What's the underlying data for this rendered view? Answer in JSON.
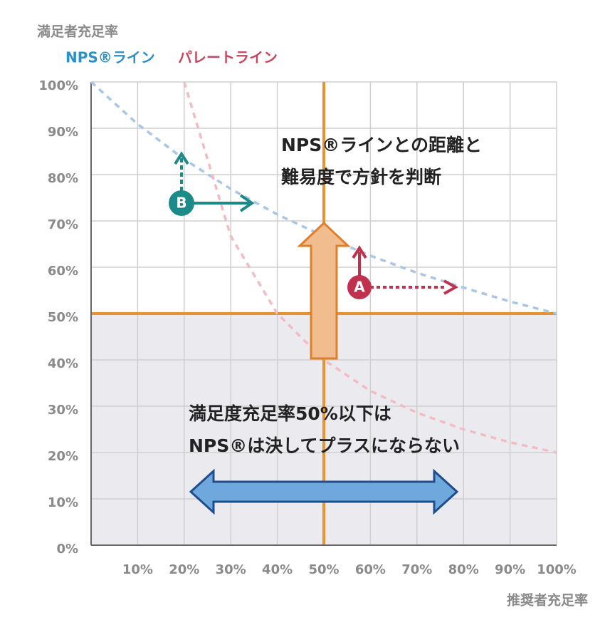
{
  "chart_data": {
    "type": "line",
    "y_label": "満足者充足率",
    "x_label": "推奨者充足率",
    "x": [
      0,
      10,
      20,
      30,
      40,
      50,
      60,
      70,
      80,
      90,
      100
    ],
    "series": [
      {
        "name": "NPS®ライン",
        "color": "#a9c6e4",
        "legend_color": "#2a90c9",
        "values": [
          100,
          90.9,
          83.3,
          76.9,
          71.4,
          66.7,
          62.5,
          58.8,
          55.6,
          52.6,
          50
        ]
      },
      {
        "name": "パレートライン",
        "color": "#f3bcc4",
        "legend_color": "#c8455e",
        "values": [
          null,
          null,
          100,
          66.7,
          50,
          40,
          33.3,
          28.6,
          25,
          22.2,
          20
        ]
      }
    ],
    "xlim": [
      0,
      100
    ],
    "ylim": [
      0,
      100
    ],
    "xticks": [
      {
        "value": 10,
        "label": "10%"
      },
      {
        "value": 20,
        "label": "20%"
      },
      {
        "value": 30,
        "label": "30%"
      },
      {
        "value": 40,
        "label": "40%"
      },
      {
        "value": 50,
        "label": "50%"
      },
      {
        "value": 60,
        "label": "60%"
      },
      {
        "value": 70,
        "label": "70%"
      },
      {
        "value": 80,
        "label": "80%"
      },
      {
        "value": 90,
        "label": "90%"
      },
      {
        "value": 100,
        "label": "100%"
      }
    ],
    "yticks": [
      {
        "value": 0,
        "label": "0%"
      },
      {
        "value": 10,
        "label": "10%"
      },
      {
        "value": 20,
        "label": "20%"
      },
      {
        "value": 30,
        "label": "30%"
      },
      {
        "value": 40,
        "label": "40%"
      },
      {
        "value": 50,
        "label": "50%"
      },
      {
        "value": 60,
        "label": "60%"
      },
      {
        "value": 70,
        "label": "70%"
      },
      {
        "value": 80,
        "label": "80%"
      },
      {
        "value": 90,
        "label": "90%"
      },
      {
        "value": 100,
        "label": "100%"
      }
    ],
    "grid": true,
    "highlight": {
      "x": 50,
      "y": 50,
      "color": "#e8932f"
    },
    "annotations": [
      "NPS®ラインとの距離と",
      "難易度で方針を判断",
      "満足度充足率50%以下は",
      "NPS®は決してプラスにならない"
    ],
    "markers": [
      "A",
      "B"
    ]
  }
}
